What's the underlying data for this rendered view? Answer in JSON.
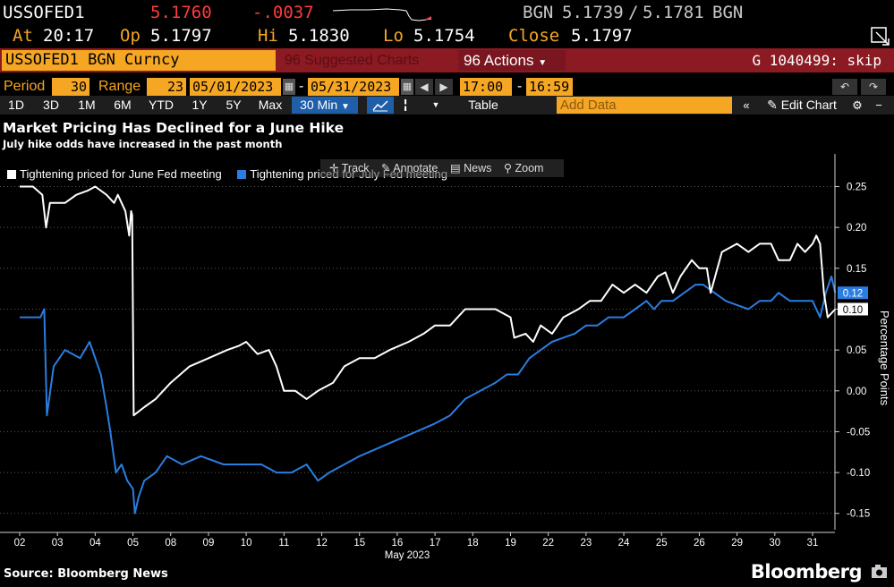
{
  "quote": {
    "ticker": "USSOFED1",
    "last": "5.1760",
    "change": "-.0037",
    "bid_source": "BGN",
    "bid": "5.1739",
    "sep": "/",
    "ask": "5.1781",
    "ask_source": "BGN",
    "at_label": "At",
    "at_time": "20:17",
    "open_label": "Op",
    "open": "5.1797",
    "high_label": "Hi",
    "high": "5.1830",
    "low_label": "Lo",
    "low": "5.1754",
    "close_label": "Close",
    "close": "5.1797"
  },
  "titlebar": {
    "security": "USSOFED1 BGN Curncy",
    "suggested_charts": "Suggested Charts",
    "actions": "Actions",
    "g_code": "G 1040499: skip"
  },
  "period": {
    "period_label": "Period",
    "period_value": "30",
    "range_label": "Range",
    "range_value": "23",
    "start_date": "05/01/2023",
    "dash": "-",
    "end_date": "05/31/2023",
    "start_time": "17:00",
    "time_dash": "-",
    "end_time": "16:59"
  },
  "toolbar": {
    "ranges": [
      "1D",
      "3D",
      "1M",
      "6M",
      "YTD",
      "1Y",
      "5Y",
      "Max"
    ],
    "interval": "30 Min",
    "table": "Table",
    "add_data_placeholder": "Add Data",
    "edit_chart": "Edit Chart"
  },
  "chart_tools": {
    "track": "Track",
    "annotate": "Annotate",
    "news": "News",
    "zoom": "Zoom"
  },
  "footer": {
    "source": "Source: Bloomberg News",
    "brand": "Bloomberg"
  },
  "colors": {
    "background": "#000000",
    "orange": "#f5a623",
    "red_down": "#ff3b3b",
    "title_bar": "#8b1a22",
    "series_white": "#ffffff",
    "series_blue": "#2a7de1"
  },
  "chart_data": {
    "type": "line",
    "title": "Market Pricing Has Declined for a June Hike",
    "subtitle": "July hike odds have increased in the past month",
    "xlabel": "May 2023",
    "ylabel": "Percentage Points",
    "ylim": [
      -0.17,
      0.29
    ],
    "yticks": [
      "0.25",
      "0.20",
      "0.15",
      "0.10",
      "0.05",
      "0.00",
      "-0.05",
      "-0.10",
      "-0.15"
    ],
    "ytick_values": [
      0.25,
      0.2,
      0.15,
      0.1,
      0.05,
      0.0,
      -0.05,
      -0.1,
      -0.15
    ],
    "x_categories": [
      "02",
      "03",
      "04",
      "05",
      "08",
      "09",
      "10",
      "11",
      "12",
      "15",
      "16",
      "17",
      "18",
      "19",
      "22",
      "23",
      "24",
      "25",
      "26",
      "29",
      "30",
      "31"
    ],
    "grid": true,
    "legend_position": "top-left",
    "last_value_labels": [
      "0.12",
      "0.10"
    ],
    "series": [
      {
        "name": "Tightening priced for June Fed meeting",
        "color": "#ffffff",
        "points": [
          [
            0.0,
            0.25
          ],
          [
            0.35,
            0.25
          ],
          [
            0.6,
            0.24
          ],
          [
            0.7,
            0.2
          ],
          [
            0.8,
            0.23
          ],
          [
            1.2,
            0.23
          ],
          [
            1.5,
            0.24
          ],
          [
            1.8,
            0.245
          ],
          [
            2.0,
            0.25
          ],
          [
            2.3,
            0.24
          ],
          [
            2.5,
            0.23
          ],
          [
            2.6,
            0.24
          ],
          [
            2.8,
            0.22
          ],
          [
            2.9,
            0.19
          ],
          [
            2.95,
            0.22
          ],
          [
            2.98,
            0.215
          ],
          [
            3.02,
            -0.03
          ],
          [
            3.3,
            -0.02
          ],
          [
            3.6,
            -0.01
          ],
          [
            3.8,
            0.0
          ],
          [
            4.0,
            0.01
          ],
          [
            4.5,
            0.03
          ],
          [
            5.0,
            0.04
          ],
          [
            5.5,
            0.05
          ],
          [
            5.8,
            0.055
          ],
          [
            6.0,
            0.06
          ],
          [
            6.3,
            0.045
          ],
          [
            6.6,
            0.05
          ],
          [
            6.8,
            0.03
          ],
          [
            7.0,
            0.0
          ],
          [
            7.3,
            0.0
          ],
          [
            7.6,
            -0.01
          ],
          [
            7.9,
            0.0
          ],
          [
            8.3,
            0.01
          ],
          [
            8.6,
            0.03
          ],
          [
            9.0,
            0.04
          ],
          [
            9.4,
            0.04
          ],
          [
            9.8,
            0.05
          ],
          [
            10.3,
            0.06
          ],
          [
            10.7,
            0.07
          ],
          [
            11.0,
            0.08
          ],
          [
            11.4,
            0.08
          ],
          [
            11.8,
            0.1
          ],
          [
            12.2,
            0.1
          ],
          [
            12.6,
            0.1
          ],
          [
            13.0,
            0.09
          ],
          [
            13.1,
            0.065
          ],
          [
            13.4,
            0.07
          ],
          [
            13.6,
            0.06
          ],
          [
            13.8,
            0.08
          ],
          [
            14.1,
            0.07
          ],
          [
            14.4,
            0.09
          ],
          [
            14.8,
            0.1
          ],
          [
            15.1,
            0.11
          ],
          [
            15.4,
            0.11
          ],
          [
            15.7,
            0.13
          ],
          [
            16.0,
            0.12
          ],
          [
            16.3,
            0.13
          ],
          [
            16.6,
            0.12
          ],
          [
            16.9,
            0.14
          ],
          [
            17.1,
            0.145
          ],
          [
            17.3,
            0.12
          ],
          [
            17.5,
            0.14
          ],
          [
            17.8,
            0.16
          ],
          [
            18.0,
            0.15
          ],
          [
            18.2,
            0.15
          ],
          [
            18.3,
            0.12
          ],
          [
            18.6,
            0.17
          ],
          [
            19.0,
            0.18
          ],
          [
            19.3,
            0.17
          ],
          [
            19.6,
            0.18
          ],
          [
            19.9,
            0.18
          ],
          [
            20.1,
            0.16
          ],
          [
            20.4,
            0.16
          ],
          [
            20.6,
            0.18
          ],
          [
            20.8,
            0.17
          ],
          [
            21.0,
            0.18
          ],
          [
            21.1,
            0.19
          ],
          [
            21.2,
            0.18
          ],
          [
            21.3,
            0.12
          ],
          [
            21.4,
            0.09
          ],
          [
            21.6,
            0.1
          ]
        ]
      },
      {
        "name": "Tightening priced for July Fed meeting",
        "color": "#2a7de1",
        "points": [
          [
            0.0,
            0.09
          ],
          [
            0.3,
            0.09
          ],
          [
            0.55,
            0.09
          ],
          [
            0.65,
            0.1
          ],
          [
            0.72,
            -0.03
          ],
          [
            0.9,
            0.03
          ],
          [
            1.2,
            0.05
          ],
          [
            1.6,
            0.04
          ],
          [
            1.85,
            0.06
          ],
          [
            2.0,
            0.04
          ],
          [
            2.15,
            0.02
          ],
          [
            2.3,
            -0.02
          ],
          [
            2.4,
            -0.05
          ],
          [
            2.55,
            -0.1
          ],
          [
            2.7,
            -0.09
          ],
          [
            2.85,
            -0.11
          ],
          [
            3.0,
            -0.12
          ],
          [
            3.05,
            -0.15
          ],
          [
            3.15,
            -0.13
          ],
          [
            3.3,
            -0.11
          ],
          [
            3.6,
            -0.1
          ],
          [
            3.9,
            -0.08
          ],
          [
            4.3,
            -0.09
          ],
          [
            4.8,
            -0.08
          ],
          [
            5.4,
            -0.09
          ],
          [
            6.0,
            -0.09
          ],
          [
            6.4,
            -0.09
          ],
          [
            6.8,
            -0.1
          ],
          [
            7.2,
            -0.1
          ],
          [
            7.6,
            -0.09
          ],
          [
            7.9,
            -0.11
          ],
          [
            8.2,
            -0.1
          ],
          [
            8.6,
            -0.09
          ],
          [
            9.0,
            -0.08
          ],
          [
            9.5,
            -0.07
          ],
          [
            10.0,
            -0.06
          ],
          [
            10.5,
            -0.05
          ],
          [
            11.0,
            -0.04
          ],
          [
            11.4,
            -0.03
          ],
          [
            11.8,
            -0.01
          ],
          [
            12.2,
            0.0
          ],
          [
            12.6,
            0.01
          ],
          [
            12.9,
            0.02
          ],
          [
            13.2,
            0.02
          ],
          [
            13.5,
            0.04
          ],
          [
            13.8,
            0.05
          ],
          [
            14.1,
            0.06
          ],
          [
            14.4,
            0.065
          ],
          [
            14.7,
            0.07
          ],
          [
            15.0,
            0.08
          ],
          [
            15.3,
            0.08
          ],
          [
            15.6,
            0.09
          ],
          [
            16.0,
            0.09
          ],
          [
            16.3,
            0.1
          ],
          [
            16.6,
            0.11
          ],
          [
            16.8,
            0.1
          ],
          [
            17.0,
            0.11
          ],
          [
            17.3,
            0.11
          ],
          [
            17.6,
            0.12
          ],
          [
            17.9,
            0.13
          ],
          [
            18.1,
            0.13
          ],
          [
            18.4,
            0.12
          ],
          [
            18.7,
            0.11
          ],
          [
            19.0,
            0.105
          ],
          [
            19.3,
            0.1
          ],
          [
            19.6,
            0.11
          ],
          [
            19.9,
            0.11
          ],
          [
            20.1,
            0.12
          ],
          [
            20.4,
            0.11
          ],
          [
            20.7,
            0.11
          ],
          [
            21.0,
            0.11
          ],
          [
            21.2,
            0.09
          ],
          [
            21.35,
            0.12
          ],
          [
            21.5,
            0.14
          ],
          [
            21.6,
            0.12
          ]
        ]
      }
    ]
  }
}
